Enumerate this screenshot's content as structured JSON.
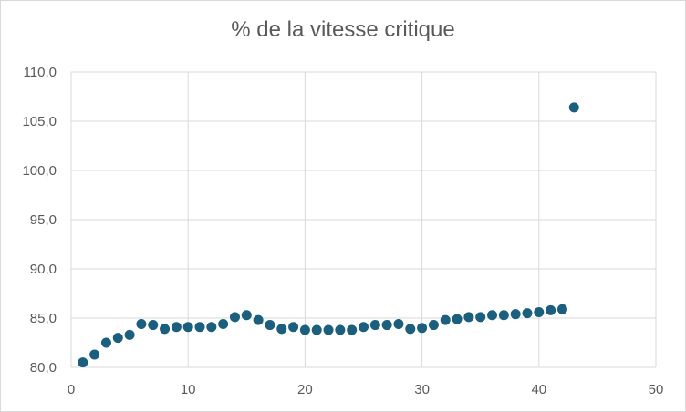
{
  "chart_data": {
    "type": "scatter",
    "title": "% de la vitesse critique",
    "xlabel": "",
    "ylabel": "",
    "xlim": [
      0,
      50
    ],
    "ylim": [
      80,
      110
    ],
    "x_ticks": [
      0,
      10,
      20,
      30,
      40,
      50
    ],
    "y_ticks": [
      "80,0",
      "85,0",
      "90,0",
      "95,0",
      "100,0",
      "105,0",
      "110,0"
    ],
    "y_tick_values": [
      80,
      85,
      90,
      95,
      100,
      105,
      110
    ],
    "grid": true,
    "legend": "none",
    "marker_color": "#1b5e7e",
    "series": [
      {
        "x": [
          1,
          2,
          3,
          4,
          5,
          6,
          7,
          8,
          9,
          10,
          11,
          12,
          13,
          14,
          15,
          16,
          17,
          18,
          19,
          20,
          21,
          22,
          23,
          24,
          25,
          26,
          27,
          28,
          29,
          30,
          31,
          32,
          33,
          34,
          35,
          36,
          37,
          38,
          39,
          40,
          41,
          42,
          43
        ],
        "y": [
          80.5,
          81.3,
          82.5,
          83.0,
          83.3,
          84.4,
          84.3,
          83.9,
          84.1,
          84.1,
          84.1,
          84.1,
          84.4,
          85.1,
          85.3,
          84.8,
          84.3,
          83.9,
          84.1,
          83.8,
          83.8,
          83.8,
          83.8,
          83.8,
          84.1,
          84.3,
          84.3,
          84.4,
          83.9,
          84.0,
          84.3,
          84.8,
          84.9,
          85.1,
          85.1,
          85.3,
          85.3,
          85.4,
          85.5,
          85.6,
          85.8,
          85.9,
          106.4
        ]
      }
    ]
  }
}
